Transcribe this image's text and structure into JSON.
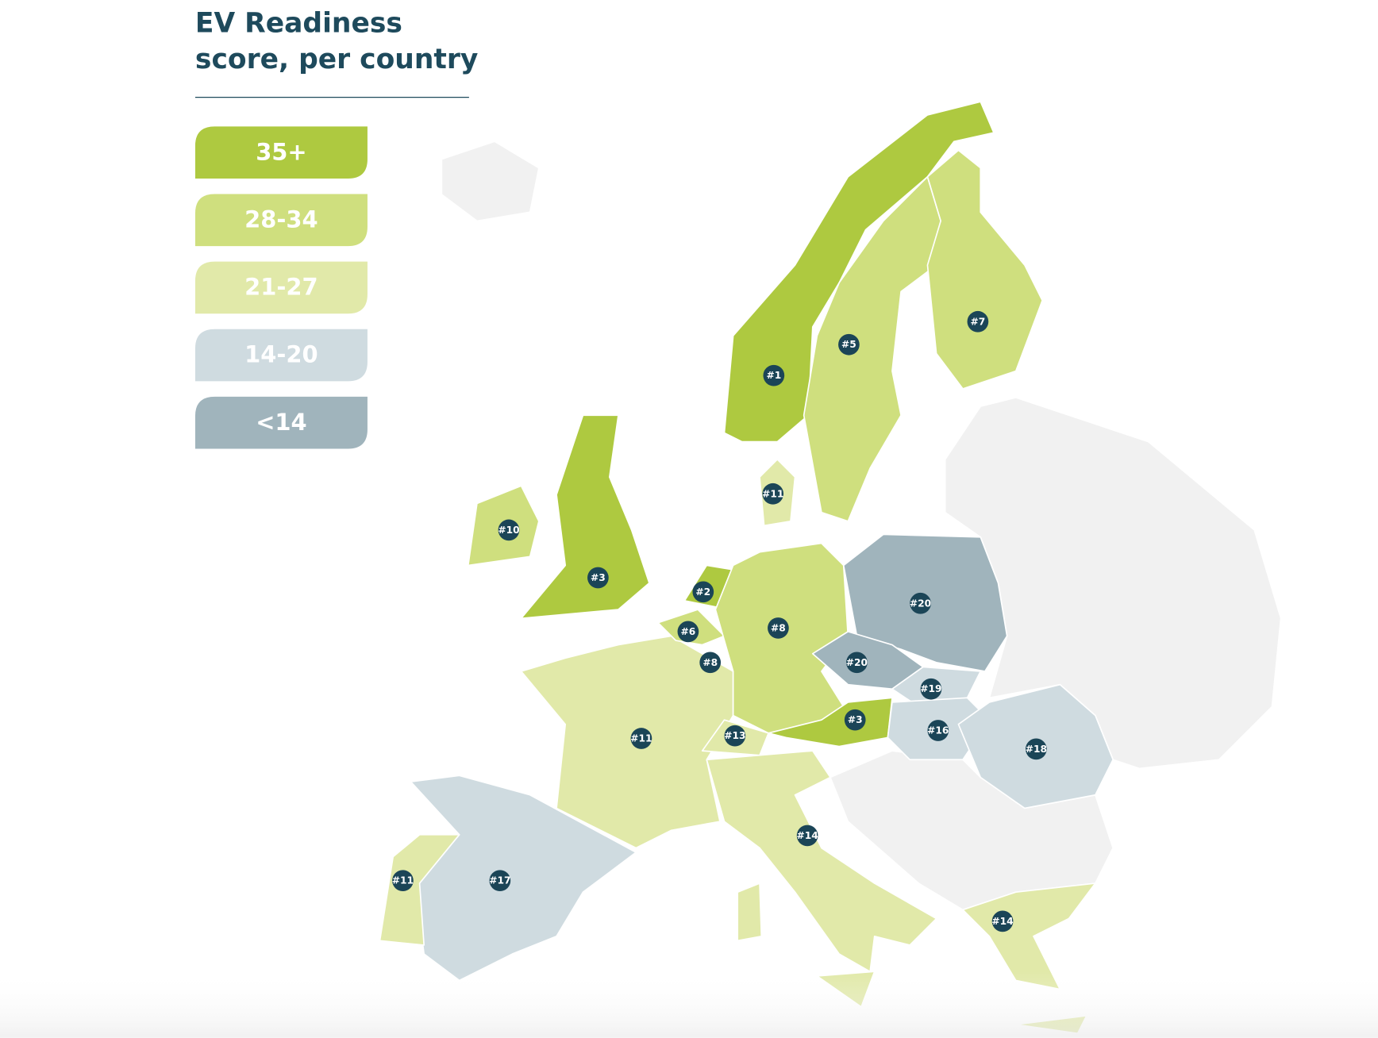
{
  "title": "EV Readiness score, per country",
  "legend": [
    {
      "label": "35+",
      "color": "#aec940"
    },
    {
      "label": "28-34",
      "color": "#cfdf7e"
    },
    {
      "label": "21-27",
      "color": "#e1e9a9"
    },
    {
      "label": "14-20",
      "color": "#cfdbe0"
    },
    {
      "label": "<14",
      "color": "#a0b4bc"
    }
  ],
  "markers": [
    "#1",
    "#5",
    "#7",
    "#11",
    "#10",
    "#3",
    "#2",
    "#8",
    "#20",
    "#6",
    "#8",
    "#20",
    "#19",
    "#3",
    "#13",
    "#16",
    "#18",
    "#11",
    "#14",
    "#11",
    "#17",
    "#14"
  ]
}
